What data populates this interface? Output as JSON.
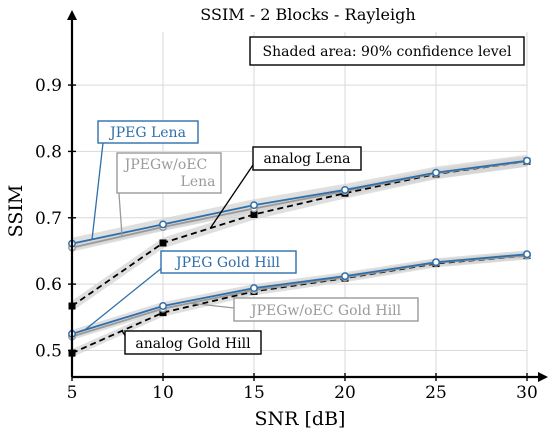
{
  "chart_data": {
    "type": "line",
    "title": "SSIM - 2 Blocks - Rayleigh",
    "xlabel": "SNR [dB]",
    "ylabel": "SSIM",
    "xlim": [
      5,
      30
    ],
    "ylim": [
      0.46,
      0.98
    ],
    "xticks": [
      5,
      10,
      15,
      20,
      25,
      30
    ],
    "yticks": [
      0.5,
      0.6,
      0.7,
      0.8,
      0.9
    ],
    "grid": true,
    "x": [
      5,
      10,
      15,
      20,
      25,
      30
    ],
    "note": "Shaded area: 90% confidence level",
    "colors": {
      "jpeg": "#2e6fab",
      "jpegwoec": "#9a9a9a",
      "analog": "#000000",
      "band": "#d4d4d4"
    },
    "series": [
      {
        "name": "JPEG Lena",
        "values": [
          0.661,
          0.69,
          0.719,
          0.742,
          0.768,
          0.786
        ]
      },
      {
        "name": "JPEGw/oEC Lena",
        "values": [
          0.655,
          0.686,
          0.714,
          0.74,
          0.767,
          0.785
        ]
      },
      {
        "name": "analog Lena",
        "values": [
          0.567,
          0.662,
          0.705,
          0.737,
          0.766,
          0.785
        ]
      },
      {
        "name": "JPEG Gold Hill",
        "values": [
          0.525,
          0.567,
          0.594,
          0.612,
          0.633,
          0.645
        ]
      },
      {
        "name": "JPEGw/oEC Gold Hill",
        "values": [
          0.521,
          0.563,
          0.591,
          0.61,
          0.632,
          0.643
        ]
      },
      {
        "name": "analog Gold Hill",
        "values": [
          0.496,
          0.557,
          0.589,
          0.609,
          0.631,
          0.643
        ]
      }
    ],
    "labels": {
      "jpeg_lena": "JPEG Lena",
      "jpegwoec_lena_1": "JPEGw/oEC",
      "jpegwoec_lena_2": "Lena",
      "analog_lena": "analog Lena",
      "jpeg_goldhill": "JPEG Gold Hill",
      "jpegwoec_goldhill": "JPEGw/oEC Gold Hill",
      "analog_goldhill": "analog Gold Hill"
    }
  }
}
